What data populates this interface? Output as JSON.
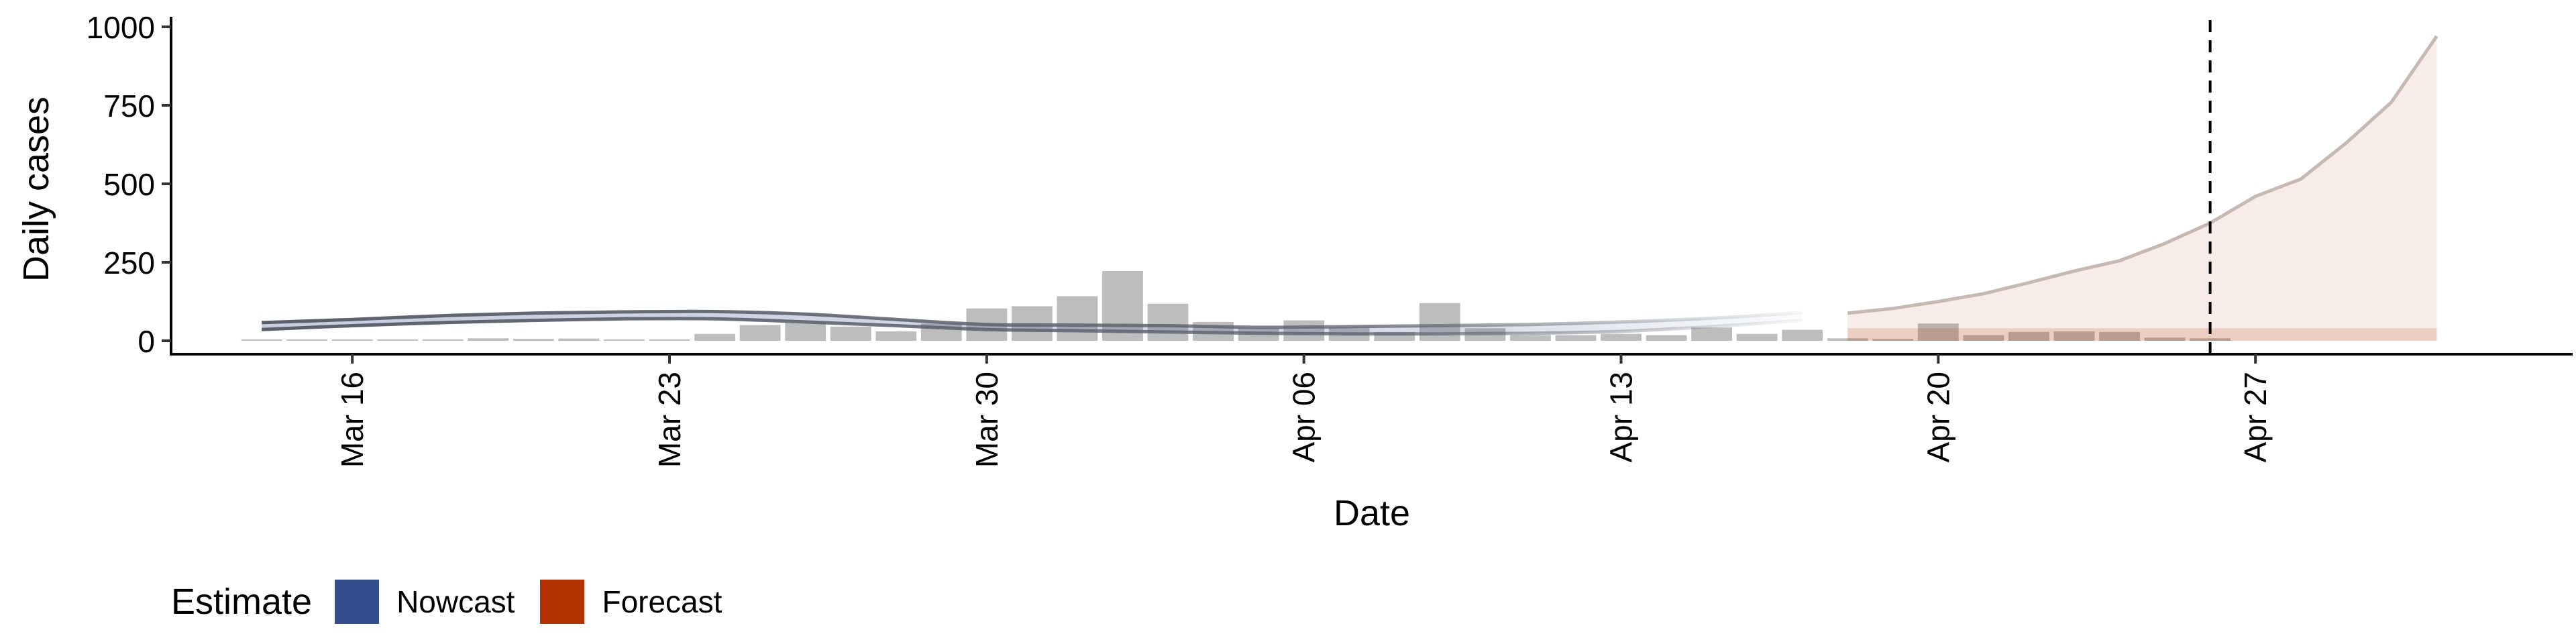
{
  "chart_data": {
    "type": "bar",
    "xlabel": "Date",
    "ylabel": "Daily cases",
    "ylim": [
      0,
      1000
    ],
    "yticks": [
      0,
      250,
      500,
      750,
      1000
    ],
    "xlim": [
      "2020-03-12",
      "2020-05-04"
    ],
    "xticks": [
      {
        "date": "2020-03-16",
        "label": "Mar 16"
      },
      {
        "date": "2020-03-23",
        "label": "Mar 23"
      },
      {
        "date": "2020-03-30",
        "label": "Mar 30"
      },
      {
        "date": "2020-04-06",
        "label": "Apr 06"
      },
      {
        "date": "2020-04-13",
        "label": "Apr 13"
      },
      {
        "date": "2020-04-20",
        "label": "Apr 20"
      },
      {
        "date": "2020-04-27",
        "label": "Apr 27"
      }
    ],
    "grid": false,
    "vline_date": "2020-04-26",
    "bars": {
      "dates": [
        "2020-03-14",
        "2020-03-15",
        "2020-03-16",
        "2020-03-17",
        "2020-03-18",
        "2020-03-19",
        "2020-03-20",
        "2020-03-21",
        "2020-03-22",
        "2020-03-23",
        "2020-03-24",
        "2020-03-25",
        "2020-03-26",
        "2020-03-27",
        "2020-03-28",
        "2020-03-29",
        "2020-03-30",
        "2020-03-31",
        "2020-04-01",
        "2020-04-02",
        "2020-04-03",
        "2020-04-04",
        "2020-04-05",
        "2020-04-06",
        "2020-04-07",
        "2020-04-08",
        "2020-04-09",
        "2020-04-10",
        "2020-04-11",
        "2020-04-12",
        "2020-04-13",
        "2020-04-14",
        "2020-04-15",
        "2020-04-16",
        "2020-04-17",
        "2020-04-18",
        "2020-04-19",
        "2020-04-20",
        "2020-04-21",
        "2020-04-22",
        "2020-04-23",
        "2020-04-24",
        "2020-04-25",
        "2020-04-26"
      ],
      "values": [
        1,
        0,
        0,
        3,
        2,
        8,
        6,
        7,
        3,
        4,
        22,
        50,
        58,
        45,
        30,
        55,
        103,
        110,
        142,
        222,
        118,
        60,
        40,
        65,
        42,
        28,
        120,
        40,
        18,
        18,
        22,
        18,
        42,
        22,
        35,
        8,
        6,
        55,
        18,
        28,
        30,
        28,
        10,
        8
      ]
    },
    "series": [
      {
        "name": "Nowcast",
        "color": "#334E8C",
        "dates": [
          "2020-03-14",
          "2020-03-16",
          "2020-03-18",
          "2020-03-20",
          "2020-03-22",
          "2020-03-24",
          "2020-03-26",
          "2020-03-28",
          "2020-03-30",
          "2020-04-01",
          "2020-04-03",
          "2020-04-05",
          "2020-04-07",
          "2020-04-09",
          "2020-04-11",
          "2020-04-13",
          "2020-04-15",
          "2020-04-17"
        ],
        "upper": [
          58,
          68,
          80,
          88,
          92,
          93,
          85,
          68,
          52,
          50,
          48,
          43,
          45,
          48,
          52,
          60,
          72,
          90
        ],
        "lower": [
          36,
          48,
          58,
          65,
          70,
          70,
          60,
          48,
          36,
          32,
          28,
          24,
          22,
          22,
          24,
          30,
          45,
          65
        ]
      },
      {
        "name": "Forecast",
        "color": "#B33000",
        "dates": [
          "2020-04-18",
          "2020-04-19",
          "2020-04-20",
          "2020-04-21",
          "2020-04-22",
          "2020-04-23",
          "2020-04-24",
          "2020-04-25",
          "2020-04-26",
          "2020-04-27",
          "2020-04-28",
          "2020-04-29",
          "2020-04-30",
          "2020-05-01"
        ],
        "upper": [
          88,
          103,
          125,
          150,
          185,
          222,
          255,
          310,
          375,
          460,
          515,
          630,
          760,
          970
        ],
        "inner_upper": [
          40,
          40,
          40,
          40,
          40,
          40,
          40,
          40,
          40,
          40,
          40,
          40,
          40,
          40
        ],
        "lower": [
          0,
          0,
          0,
          0,
          0,
          0,
          0,
          0,
          0,
          0,
          0,
          0,
          0,
          0
        ]
      }
    ]
  },
  "legend": {
    "title": "Estimate",
    "items": [
      {
        "label": "Nowcast",
        "color": "#334E8C"
      },
      {
        "label": "Forecast",
        "color": "#B33000"
      }
    ]
  }
}
